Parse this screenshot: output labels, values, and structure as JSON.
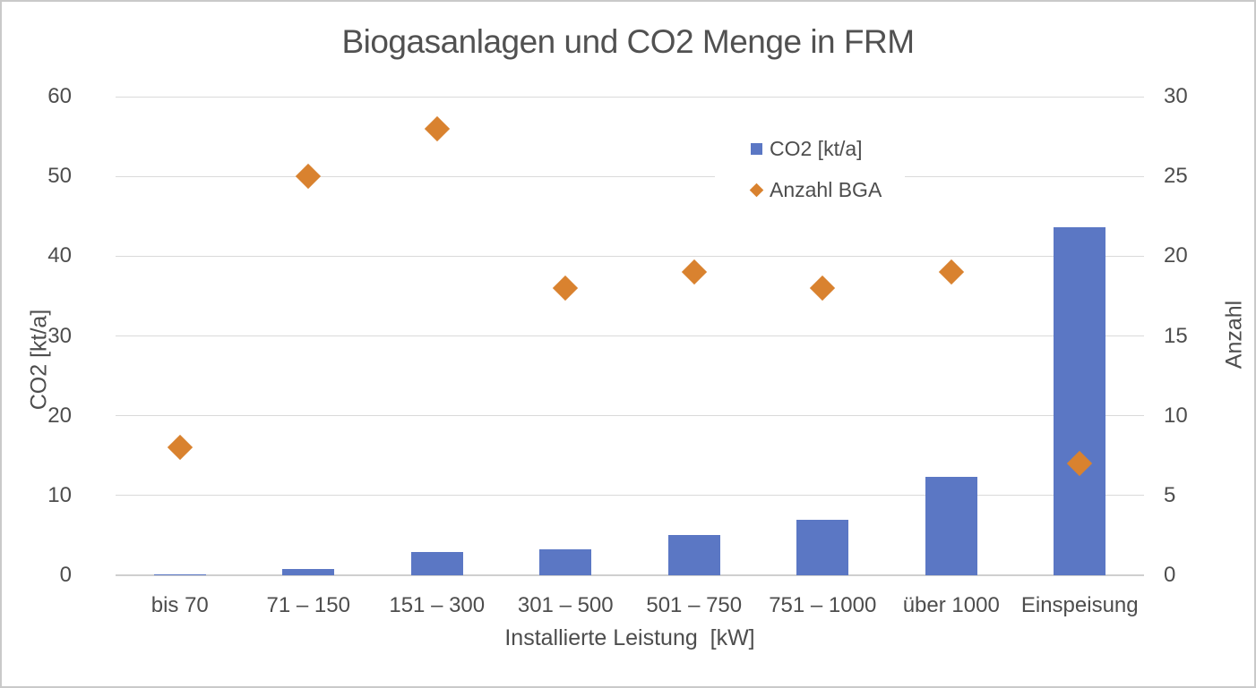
{
  "chart_data": {
    "type": "combo-bar-scatter",
    "title": "Biogasanlagen und CO2 Menge in FRM",
    "categories": [
      "bis 70",
      "71 – 150",
      "151 – 300",
      "301 – 500",
      "501 – 750",
      "751 – 1000",
      "über 1000",
      "Einspeisung"
    ],
    "series": [
      {
        "name": "CO2 [kt/a]",
        "type": "bar",
        "axis": "left",
        "values": [
          0.15,
          0.8,
          2.9,
          3.2,
          5.0,
          6.9,
          12.3,
          43.6
        ],
        "color": "#5B77C4"
      },
      {
        "name": "Anzahl BGA",
        "type": "scatter",
        "marker": "diamond",
        "axis": "right",
        "values": [
          8,
          25,
          28,
          18,
          19,
          18,
          19,
          7
        ],
        "color": "#D9822F"
      }
    ],
    "xlabel": "Installierte Leistung  [kW]",
    "ylabel_left": "CO2 [kt/a]",
    "ylabel_right": "Anzahl",
    "left_axis": {
      "min": 0,
      "max": 60,
      "ticks": [
        0,
        10,
        20,
        30,
        40,
        50,
        60
      ]
    },
    "right_axis": {
      "min": 0,
      "max": 30,
      "ticks": [
        0,
        5,
        10,
        15,
        20,
        25,
        30
      ]
    },
    "grid": "horizontal",
    "legend_position": "inside-top-right"
  }
}
